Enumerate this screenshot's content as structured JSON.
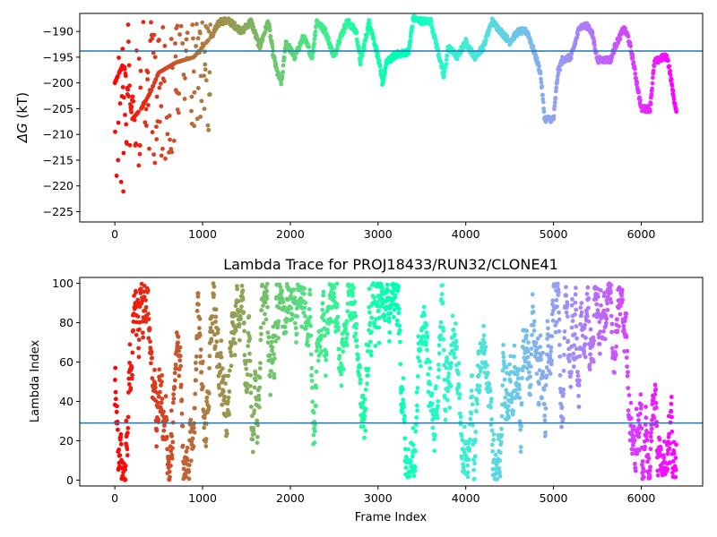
{
  "chart_data": [
    {
      "type": "scatter",
      "title": "",
      "xlabel": "",
      "ylabel_symbol": "ΔG",
      "ylabel_unit": " (kT)",
      "xlim": [
        -400,
        6700
      ],
      "ylim": [
        -227,
        -186.5
      ],
      "xticks": [
        0,
        1000,
        2000,
        3000,
        4000,
        5000,
        6000
      ],
      "yticks": [
        -190,
        -195,
        -200,
        -205,
        -210,
        -215,
        -220,
        -225
      ],
      "hline": -193.8,
      "hline_color": "#1f77b4",
      "colormap": "rainbow",
      "frame_max": 6400,
      "x_frame_range": [
        0,
        6400
      ],
      "trace": [
        [
          0,
          -200
        ],
        [
          100,
          -196
        ],
        [
          200,
          -207
        ],
        [
          300,
          -205
        ],
        [
          400,
          -202
        ],
        [
          500,
          -198
        ],
        [
          700,
          -196
        ],
        [
          900,
          -195
        ],
        [
          1100,
          -191
        ],
        [
          1200,
          -188
        ],
        [
          1300,
          -188
        ],
        [
          1450,
          -190
        ],
        [
          1550,
          -188
        ],
        [
          1650,
          -193
        ],
        [
          1750,
          -188
        ],
        [
          1800,
          -194
        ],
        [
          1850,
          -198
        ],
        [
          1900,
          -200
        ],
        [
          1950,
          -192
        ],
        [
          2050,
          -195
        ],
        [
          2150,
          -191
        ],
        [
          2250,
          -195
        ],
        [
          2300,
          -188
        ],
        [
          2400,
          -190
        ],
        [
          2500,
          -195
        ],
        [
          2550,
          -192
        ],
        [
          2650,
          -188
        ],
        [
          2750,
          -190
        ],
        [
          2800,
          -196
        ],
        [
          2900,
          -188
        ],
        [
          3000,
          -195
        ],
        [
          3050,
          -200
        ],
        [
          3100,
          -196
        ],
        [
          3200,
          -194.5
        ],
        [
          3350,
          -194
        ],
        [
          3400,
          -187.5
        ],
        [
          3500,
          -188
        ],
        [
          3600,
          -188
        ],
        [
          3700,
          -195
        ],
        [
          3750,
          -199
        ],
        [
          3800,
          -193
        ],
        [
          3900,
          -195
        ],
        [
          4000,
          -192
        ],
        [
          4100,
          -195
        ],
        [
          4200,
          -193
        ],
        [
          4300,
          -188
        ],
        [
          4400,
          -190
        ],
        [
          4500,
          -192
        ],
        [
          4600,
          -190
        ],
        [
          4700,
          -190
        ],
        [
          4800,
          -195
        ],
        [
          4850,
          -198
        ],
        [
          4900,
          -207
        ],
        [
          5000,
          -207
        ],
        [
          5050,
          -198
        ],
        [
          5100,
          -195.5
        ],
        [
          5200,
          -195
        ],
        [
          5300,
          -189
        ],
        [
          5400,
          -189
        ],
        [
          5450,
          -191
        ],
        [
          5500,
          -195.5
        ],
        [
          5650,
          -195.5
        ],
        [
          5700,
          -193
        ],
        [
          5800,
          -189.5
        ],
        [
          5850,
          -191
        ],
        [
          5900,
          -195
        ],
        [
          5950,
          -200
        ],
        [
          6000,
          -205
        ],
        [
          6100,
          -205
        ],
        [
          6150,
          -196
        ],
        [
          6250,
          -195
        ],
        [
          6300,
          -195
        ],
        [
          6400,
          -206
        ]
      ]
    },
    {
      "type": "scatter",
      "title": "Lambda Trace for PROJ18433/RUN32/CLONE41",
      "xlabel": "Frame Index",
      "ylabel": "Lambda Index",
      "xlim": [
        -400,
        6700
      ],
      "ylim": [
        -3,
        103
      ],
      "xticks": [
        0,
        1000,
        2000,
        3000,
        4000,
        5000,
        6000
      ],
      "yticks": [
        0,
        20,
        40,
        60,
        80,
        100
      ],
      "hline": 29,
      "hline_color": "#1f77b4",
      "colormap": "rainbow",
      "frame_max": 6400,
      "x_frame_range": [
        0,
        6400
      ],
      "y_range": [
        0,
        100
      ]
    }
  ]
}
